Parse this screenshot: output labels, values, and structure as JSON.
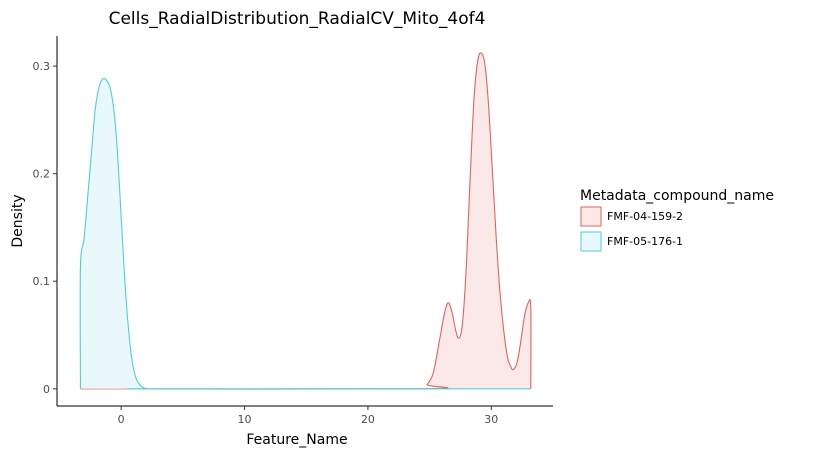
{
  "chart_data": {
    "type": "area",
    "title": "Cells_RadialDistribution_RadialCV_Mito_4of4",
    "xlabel": "Feature_Name",
    "ylabel": "Density",
    "xlim": [
      -5.2,
      35
    ],
    "ylim": [
      -0.016,
      0.328
    ],
    "x_ticks": [
      0,
      10,
      20,
      30
    ],
    "x_tick_labels": [
      "0",
      "10",
      "20",
      "30"
    ],
    "y_ticks": [
      0,
      0.1,
      0.2,
      0.3
    ],
    "y_tick_labels": [
      "0",
      "0.1",
      "0.2",
      "0.3"
    ],
    "grid": false,
    "legend": {
      "title": "Metadata_compound_name",
      "position": "right"
    },
    "series": [
      {
        "name": "FMF-04-159-2",
        "line_color": "#E0635C",
        "fill_color": "#FBE9E8",
        "x": [
          -3.3,
          24.3,
          24.8,
          25.3,
          25.8,
          26.2,
          26.5,
          26.8,
          27.1,
          27.35,
          27.6,
          27.8,
          28.0,
          28.3,
          28.6,
          28.9,
          29.2,
          29.5,
          29.8,
          30.1,
          30.4,
          30.7,
          31.0,
          31.3,
          31.6,
          31.8,
          32.1,
          32.4,
          32.7,
          33.0,
          33.2,
          33.2
        ],
        "y": [
          0,
          0,
          0.004,
          0.015,
          0.045,
          0.07,
          0.08,
          0.072,
          0.055,
          0.047,
          0.055,
          0.08,
          0.12,
          0.2,
          0.27,
          0.305,
          0.312,
          0.3,
          0.26,
          0.2,
          0.14,
          0.09,
          0.055,
          0.03,
          0.02,
          0.018,
          0.025,
          0.045,
          0.068,
          0.08,
          0.075,
          0
        ]
      },
      {
        "name": "FMF-05-176-1",
        "line_color": "#4DCFD8",
        "fill_color": "#E9F8FA",
        "x": [
          -3.3,
          -3.3,
          -3.0,
          -2.7,
          -2.4,
          -2.1,
          -1.8,
          -1.5,
          -1.2,
          -0.9,
          -0.6,
          -0.3,
          0.0,
          0.3,
          0.6,
          0.9,
          1.2,
          1.5,
          1.8,
          2.2,
          3.0,
          33.2
        ],
        "y": [
          0,
          0.113,
          0.14,
          0.18,
          0.22,
          0.26,
          0.28,
          0.288,
          0.287,
          0.28,
          0.26,
          0.22,
          0.16,
          0.1,
          0.055,
          0.025,
          0.01,
          0.004,
          0.001,
          0,
          0,
          0
        ]
      }
    ]
  }
}
